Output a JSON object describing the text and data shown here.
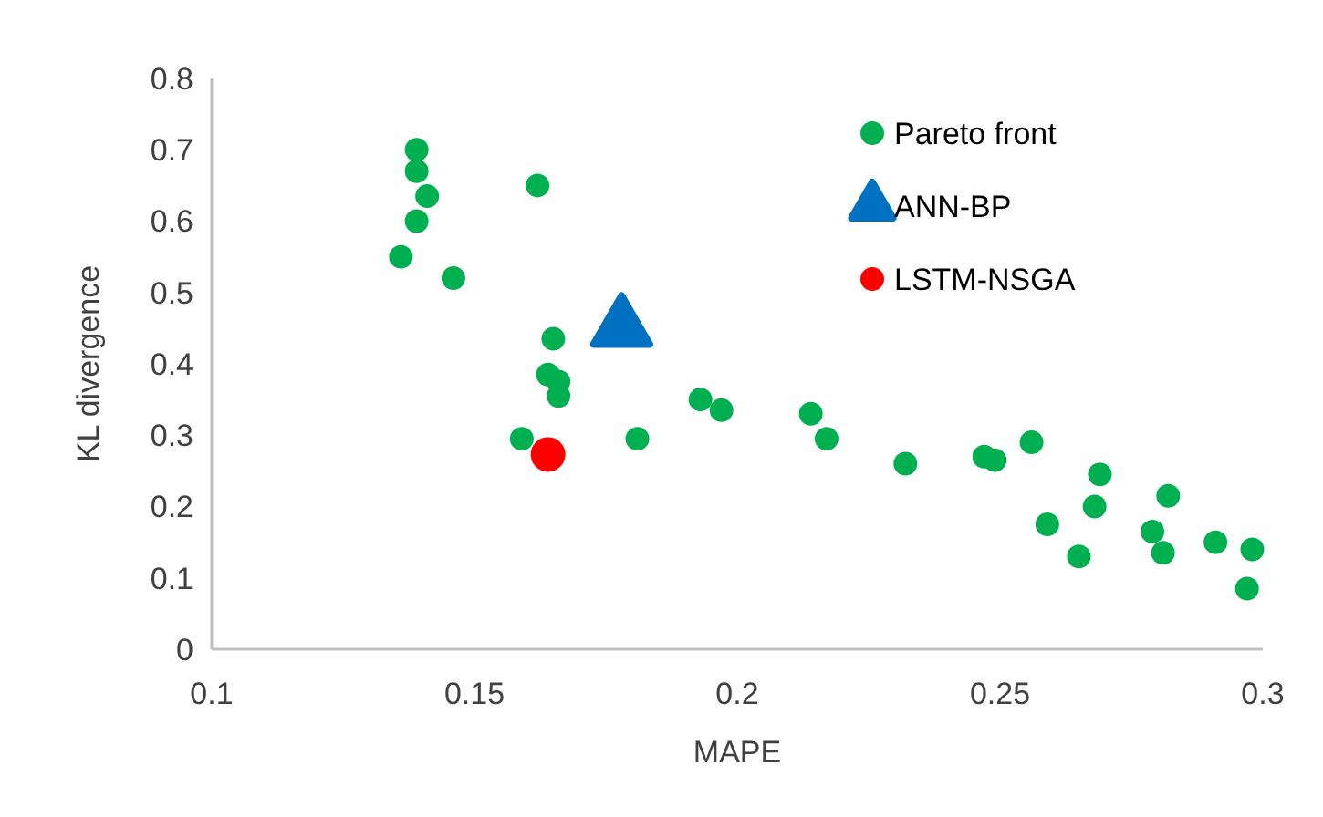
{
  "chart_data": {
    "type": "scatter",
    "xlabel": "MAPE",
    "ylabel": "KL divergence",
    "xlim": [
      0.1,
      0.3
    ],
    "xticks": [
      0.1,
      0.15,
      0.2,
      0.25,
      0.3
    ],
    "ylim": [
      0,
      0.8
    ],
    "yticks": [
      0,
      0.1,
      0.2,
      0.3,
      0.4,
      0.5,
      0.6,
      0.7,
      0.8
    ],
    "grid": false,
    "legend": "top right",
    "series": [
      {
        "name": "Pareto front",
        "color": "#00b050",
        "marker": "circle",
        "x": [
          0.139,
          0.139,
          0.141,
          0.139,
          0.136,
          0.146,
          0.162,
          0.165,
          0.164,
          0.166,
          0.166,
          0.159,
          0.181,
          0.193,
          0.197,
          0.214,
          0.217,
          0.232,
          0.247,
          0.249,
          0.256,
          0.269,
          0.268,
          0.259,
          0.265,
          0.282,
          0.279,
          0.281,
          0.291,
          0.298,
          0.297
        ],
        "values": [
          0.7,
          0.67,
          0.635,
          0.6,
          0.55,
          0.52,
          0.65,
          0.435,
          0.385,
          0.375,
          0.355,
          0.295,
          0.295,
          0.35,
          0.335,
          0.33,
          0.295,
          0.26,
          0.27,
          0.265,
          0.29,
          0.245,
          0.2,
          0.175,
          0.13,
          0.215,
          0.165,
          0.135,
          0.15,
          0.14,
          0.085
        ]
      },
      {
        "name": "ANN-BP",
        "color": "#0070c0",
        "marker": "triangle",
        "x": [
          0.178
        ],
        "values": [
          0.45
        ]
      },
      {
        "name": "LSTM-NSGA",
        "color": "#ff0000",
        "marker": "circle",
        "x": [
          0.164
        ],
        "values": [
          0.273
        ]
      }
    ]
  }
}
